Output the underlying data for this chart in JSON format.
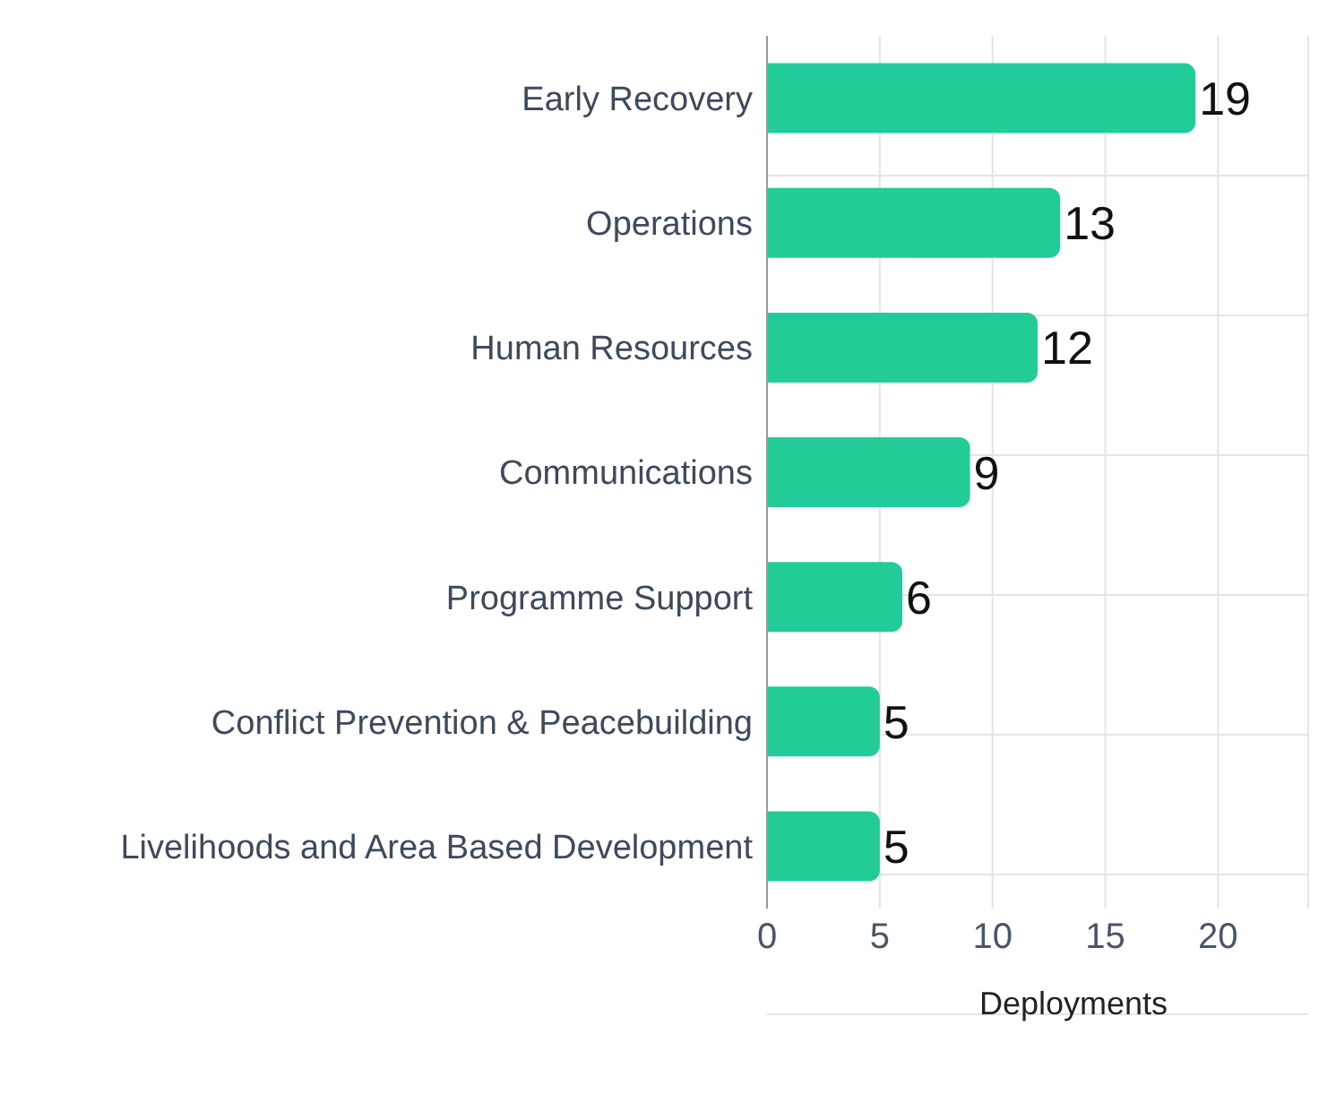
{
  "chart_data": {
    "type": "bar",
    "orientation": "horizontal",
    "xlabel": "Deployments",
    "categories": [
      "Early Recovery",
      "Operations",
      "Human Resources",
      "Communications",
      "Programme Support",
      "Conflict Prevention & Peacebuilding",
      "Livelihoods and Area Based Development"
    ],
    "values": [
      19,
      13,
      12,
      9,
      6,
      5,
      5
    ],
    "color": "#22cc99",
    "xlim": [
      0,
      24
    ],
    "xticks": [
      0,
      5,
      10,
      15,
      20
    ],
    "grid": true,
    "data_labels": true
  }
}
